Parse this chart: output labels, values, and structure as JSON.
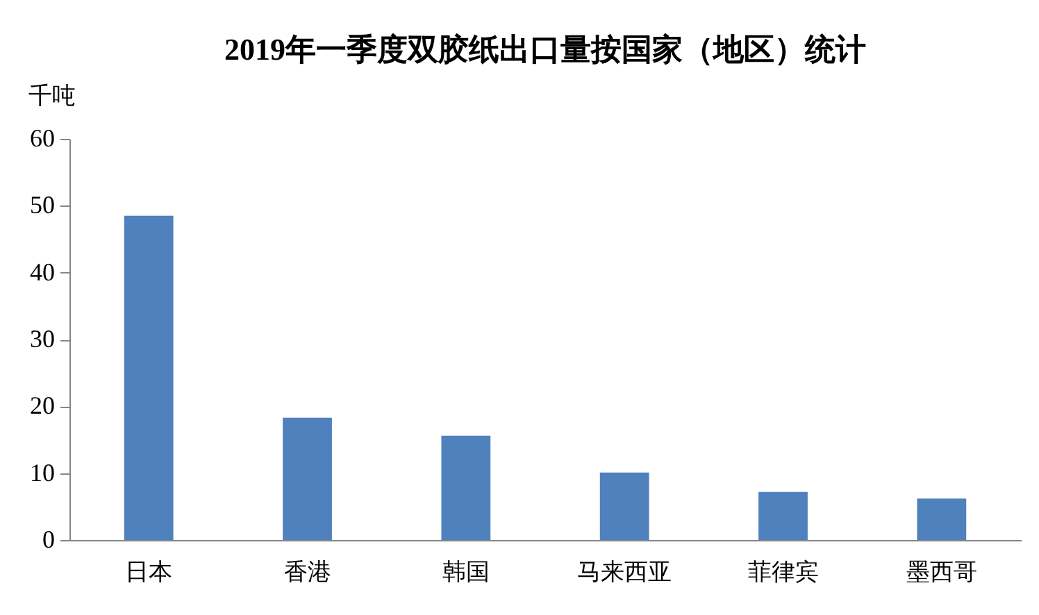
{
  "chart_data": {
    "type": "bar",
    "title": "2019年一季度双胶纸出口量按国家（地区）统计",
    "ylabel": "千吨",
    "categories": [
      "日本",
      "香港",
      "韩国",
      "马来西亚",
      "菲律宾",
      "墨西哥"
    ],
    "values": [
      48.5,
      18.3,
      15.6,
      10.1,
      7.2,
      6.2
    ],
    "color": "#4f81bd",
    "ylim": [
      0,
      60
    ],
    "yticks": [
      0,
      10,
      20,
      30,
      40,
      50,
      60
    ],
    "grid": false
  }
}
